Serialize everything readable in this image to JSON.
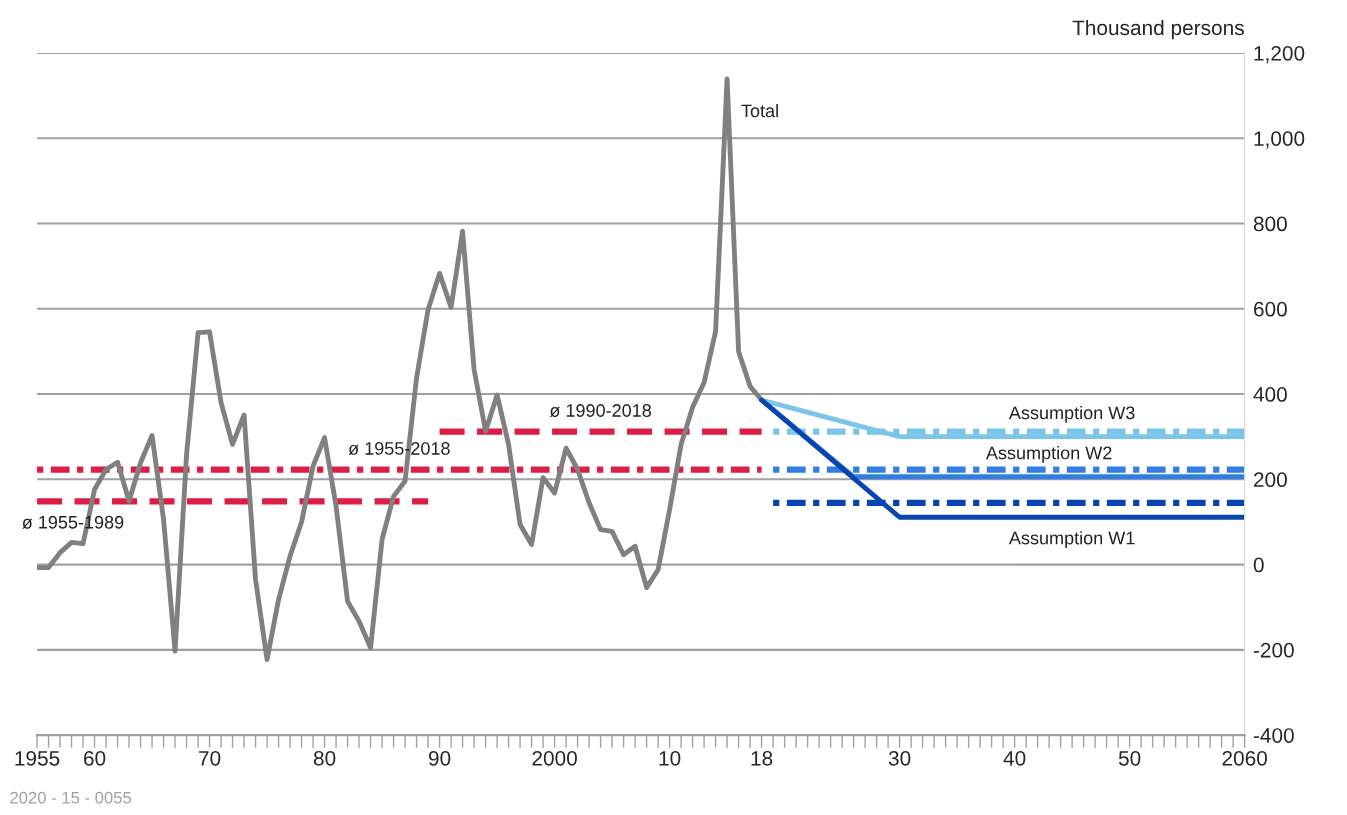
{
  "chart_data": {
    "type": "line",
    "ylabel": "Thousand persons",
    "xlim": [
      1955,
      2060
    ],
    "xticks": [
      {
        "value": 1955,
        "label": "1955"
      },
      {
        "value": 1956,
        "label": null
      },
      {
        "value": 1957,
        "label": null
      },
      {
        "value": 1958,
        "label": null
      },
      {
        "value": 1959,
        "label": null
      },
      {
        "value": 1960,
        "label": "60"
      },
      {
        "value": 1961,
        "label": null
      },
      {
        "value": 1962,
        "label": null
      },
      {
        "value": 1963,
        "label": null
      },
      {
        "value": 1964,
        "label": null
      },
      {
        "value": 1965,
        "label": null
      },
      {
        "value": 1966,
        "label": null
      },
      {
        "value": 1967,
        "label": null
      },
      {
        "value": 1968,
        "label": null
      },
      {
        "value": 1969,
        "label": null
      },
      {
        "value": 1970,
        "label": "70"
      },
      {
        "value": 1971,
        "label": null
      },
      {
        "value": 1972,
        "label": null
      },
      {
        "value": 1973,
        "label": null
      },
      {
        "value": 1974,
        "label": null
      },
      {
        "value": 1975,
        "label": null
      },
      {
        "value": 1976,
        "label": null
      },
      {
        "value": 1977,
        "label": null
      },
      {
        "value": 1978,
        "label": null
      },
      {
        "value": 1979,
        "label": null
      },
      {
        "value": 1980,
        "label": "80"
      },
      {
        "value": 1981,
        "label": null
      },
      {
        "value": 1982,
        "label": null
      },
      {
        "value": 1983,
        "label": null
      },
      {
        "value": 1984,
        "label": null
      },
      {
        "value": 1985,
        "label": null
      },
      {
        "value": 1986,
        "label": null
      },
      {
        "value": 1987,
        "label": null
      },
      {
        "value": 1988,
        "label": null
      },
      {
        "value": 1989,
        "label": null
      },
      {
        "value": 1990,
        "label": "90"
      },
      {
        "value": 1991,
        "label": null
      },
      {
        "value": 1992,
        "label": null
      },
      {
        "value": 1993,
        "label": null
      },
      {
        "value": 1994,
        "label": null
      },
      {
        "value": 1995,
        "label": null
      },
      {
        "value": 1996,
        "label": null
      },
      {
        "value": 1997,
        "label": null
      },
      {
        "value": 1998,
        "label": null
      },
      {
        "value": 1999,
        "label": null
      },
      {
        "value": 2000,
        "label": "2000"
      },
      {
        "value": 2001,
        "label": null
      },
      {
        "value": 2002,
        "label": null
      },
      {
        "value": 2003,
        "label": null
      },
      {
        "value": 2004,
        "label": null
      },
      {
        "value": 2005,
        "label": null
      },
      {
        "value": 2006,
        "label": null
      },
      {
        "value": 2007,
        "label": null
      },
      {
        "value": 2008,
        "label": null
      },
      {
        "value": 2009,
        "label": null
      },
      {
        "value": 2010,
        "label": "10"
      },
      {
        "value": 2011,
        "label": null
      },
      {
        "value": 2012,
        "label": null
      },
      {
        "value": 2013,
        "label": null
      },
      {
        "value": 2014,
        "label": null
      },
      {
        "value": 2015,
        "label": null
      },
      {
        "value": 2016,
        "label": null
      },
      {
        "value": 2017,
        "label": null
      },
      {
        "value": 2018,
        "label": "18"
      },
      {
        "value": 2019,
        "label": null
      },
      {
        "value": 2020,
        "label": null
      },
      {
        "value": 2021,
        "label": null
      },
      {
        "value": 2022,
        "label": null
      },
      {
        "value": 2023,
        "label": null
      },
      {
        "value": 2024,
        "label": null
      },
      {
        "value": 2025,
        "label": null
      },
      {
        "value": 2026,
        "label": null
      },
      {
        "value": 2027,
        "label": null
      },
      {
        "value": 2028,
        "label": null
      },
      {
        "value": 2029,
        "label": null
      },
      {
        "value": 2030,
        "label": "30"
      },
      {
        "value": 2031,
        "label": null
      },
      {
        "value": 2032,
        "label": null
      },
      {
        "value": 2033,
        "label": null
      },
      {
        "value": 2034,
        "label": null
      },
      {
        "value": 2035,
        "label": null
      },
      {
        "value": 2036,
        "label": null
      },
      {
        "value": 2037,
        "label": null
      },
      {
        "value": 2038,
        "label": null
      },
      {
        "value": 2039,
        "label": null
      },
      {
        "value": 2040,
        "label": "40"
      },
      {
        "value": 2041,
        "label": null
      },
      {
        "value": 2042,
        "label": null
      },
      {
        "value": 2043,
        "label": null
      },
      {
        "value": 2044,
        "label": null
      },
      {
        "value": 2045,
        "label": null
      },
      {
        "value": 2046,
        "label": null
      },
      {
        "value": 2047,
        "label": null
      },
      {
        "value": 2048,
        "label": null
      },
      {
        "value": 2049,
        "label": null
      },
      {
        "value": 2050,
        "label": "50"
      },
      {
        "value": 2051,
        "label": null
      },
      {
        "value": 2052,
        "label": null
      },
      {
        "value": 2053,
        "label": null
      },
      {
        "value": 2054,
        "label": null
      },
      {
        "value": 2055,
        "label": null
      },
      {
        "value": 2056,
        "label": null
      },
      {
        "value": 2057,
        "label": null
      },
      {
        "value": 2058,
        "label": null
      },
      {
        "value": 2059,
        "label": null
      },
      {
        "value": 2060,
        "label": "2060"
      }
    ],
    "ylim": [
      -400,
      1200
    ],
    "yticks": [
      -400,
      -200,
      0,
      200,
      400,
      600,
      800,
      {
        "value": 1000,
        "label": "1,000"
      },
      {
        "value": 1200,
        "label": "1,200"
      }
    ],
    "grid": "y",
    "series": [
      {
        "name": "ø 1955-1989",
        "color": "#dc1e46",
        "line_style": "dashed",
        "x": [
          1955,
          1989
        ],
        "values": [
          148,
          148
        ]
      },
      {
        "name": "ø 1990-2018",
        "color": "#dc1e46",
        "line_style": "dashed",
        "x": [
          1990,
          2018
        ],
        "values": [
          312,
          312
        ]
      },
      {
        "name": "ø 1955-2018",
        "color": "#dc1e46",
        "line_style": "dotted",
        "x": [
          1955,
          2018
        ],
        "values": [
          223,
          223
        ]
      },
      {
        "color": "#7ac5e8",
        "line_style": "dotted",
        "x": [
          2019,
          2060
        ],
        "values": [
          312,
          312
        ]
      },
      {
        "color": "#2e7fe0",
        "line_style": "dotted",
        "x": [
          2019,
          2060
        ],
        "values": [
          223,
          223
        ]
      },
      {
        "color": "#0a44b0",
        "line_style": "dotted",
        "x": [
          2019,
          2060
        ],
        "values": [
          145,
          145
        ]
      },
      {
        "name": "Total",
        "color": "#808080",
        "line_style": "solid",
        "x": [
          1955,
          1956,
          1957,
          1958,
          1959,
          1960,
          1961,
          1962,
          1963,
          1964,
          1965,
          1966,
          1967,
          1968,
          1969,
          1970,
          1971,
          1972,
          1973,
          1974,
          1975,
          1976,
          1977,
          1978,
          1979,
          1980,
          1981,
          1982,
          1983,
          1984,
          1985,
          1986,
          1987,
          1988,
          1989,
          1990,
          1991,
          1992,
          1993,
          1994,
          1995,
          1996,
          1997,
          1998,
          1999,
          2000,
          2001,
          2002,
          2003,
          2004,
          2005,
          2006,
          2007,
          2008,
          2009,
          2010,
          2011,
          2012,
          2013,
          2014,
          2015,
          2016,
          2017,
          2018
        ],
        "values": [
          -7,
          -7,
          28,
          52,
          49,
          176,
          223,
          240,
          149,
          239,
          303,
          106,
          -203,
          258,
          544,
          546,
          380,
          282,
          351,
          -35,
          -223,
          -82,
          20,
          100,
          231,
          298,
          137,
          -86,
          -133,
          -195,
          59,
          160,
          196,
          438,
          598,
          683,
          603,
          782,
          458,
          313,
          398,
          282,
          94,
          47,
          204,
          168,
          273,
          223,
          145,
          82,
          78,
          23,
          43,
          -54,
          -12,
          129,
          282,
          369,
          427,
          547,
          1139,
          500,
          418,
          386
        ]
      },
      {
        "name": "Assumption W3",
        "color": "#7ac5e8",
        "line_style": "solid",
        "x": [
          2018,
          2030,
          2060
        ],
        "values": [
          386,
          300,
          300
        ]
      },
      {
        "name": "Assumption W2",
        "color": "#2e7fe0",
        "line_style": "solid",
        "x": [
          2018,
          2026,
          2060
        ],
        "values": [
          386,
          206,
          206
        ]
      },
      {
        "name": "Assumption W1",
        "color": "#0a44b0",
        "line_style": "solid",
        "x": [
          2018,
          2030,
          2060
        ],
        "values": [
          386,
          111,
          111
        ]
      }
    ],
    "annotations": [
      "2020 - 15 - 0055"
    ]
  }
}
